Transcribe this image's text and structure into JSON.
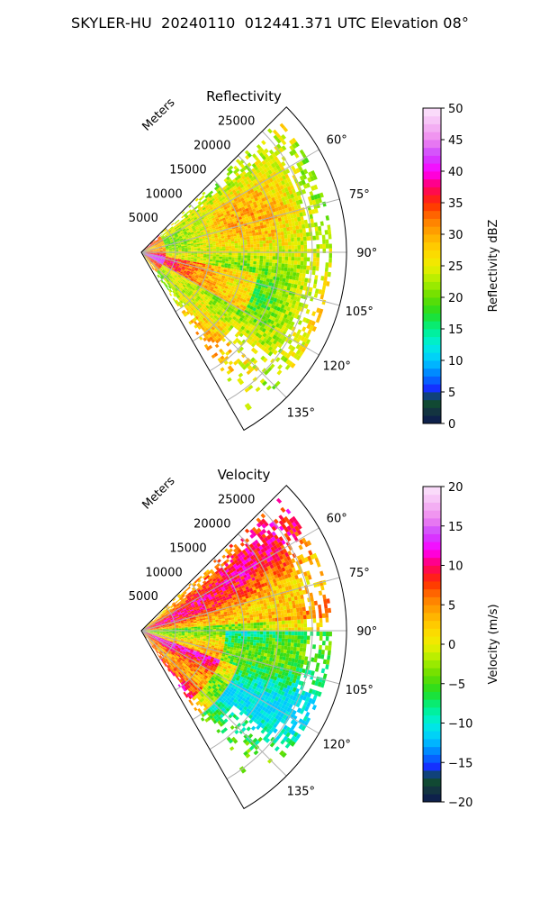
{
  "figure_title": "SKYLER-HU  20240110  012441.371 UTC Elevation 08°",
  "chart_data": [
    {
      "type": "heatmap",
      "projection": "polar-sector",
      "title": "Reflectivity",
      "radial_label": "Meters",
      "radial_ticks": [
        "5000",
        "10000",
        "15000",
        "20000",
        "25000"
      ],
      "radial_tick_values": [
        5000,
        10000,
        15000,
        20000,
        25000
      ],
      "r_max": 30000,
      "azimuth_range": [
        45,
        150
      ],
      "azimuth_ticks": [
        "60°",
        "75°",
        "90°",
        "105°",
        "120°",
        "135°"
      ],
      "azimuth_tick_values": [
        60,
        75,
        90,
        105,
        120,
        135
      ],
      "grid": true,
      "colorbar": {
        "label": "Reflectivity dBZ",
        "range": [
          0,
          50
        ],
        "ticks": [
          "0",
          "5",
          "10",
          "15",
          "20",
          "25",
          "30",
          "35",
          "40",
          "45",
          "50"
        ],
        "tick_values": [
          0,
          5,
          10,
          15,
          20,
          25,
          30,
          35,
          40,
          45,
          50
        ],
        "stops": [
          {
            "v": 0,
            "c": "#0b1750"
          },
          {
            "v": 2.5,
            "c": "#163d3a"
          },
          {
            "v": 4,
            "c": "#0a5a2a"
          },
          {
            "v": 5,
            "c": "#1a1aff"
          },
          {
            "v": 7.5,
            "c": "#0077ff"
          },
          {
            "v": 10,
            "c": "#00c8ff"
          },
          {
            "v": 12.5,
            "c": "#00eedd"
          },
          {
            "v": 15,
            "c": "#00f08a"
          },
          {
            "v": 17.5,
            "c": "#22dd22"
          },
          {
            "v": 20,
            "c": "#66dd00"
          },
          {
            "v": 22.5,
            "c": "#aaee00"
          },
          {
            "v": 25,
            "c": "#eeee00"
          },
          {
            "v": 27.5,
            "c": "#ffd400"
          },
          {
            "v": 30,
            "c": "#ffaa00"
          },
          {
            "v": 32.5,
            "c": "#ff7700"
          },
          {
            "v": 35,
            "c": "#ff2a00"
          },
          {
            "v": 37.5,
            "c": "#ff0066"
          },
          {
            "v": 40,
            "c": "#ff00ff"
          },
          {
            "v": 42.5,
            "c": "#cc44ff"
          },
          {
            "v": 45,
            "c": "#ee88ee"
          },
          {
            "v": 47.5,
            "c": "#f5bbf5"
          },
          {
            "v": 50,
            "c": "#fbe6fb"
          }
        ]
      },
      "colors": {
        "data_range": [
          16,
          42
        ],
        "noise": 3.5
      }
    },
    {
      "type": "heatmap",
      "projection": "polar-sector",
      "title": "Velocity",
      "radial_label": "Meters",
      "radial_ticks": [
        "5000",
        "10000",
        "15000",
        "20000",
        "25000"
      ],
      "radial_tick_values": [
        5000,
        10000,
        15000,
        20000,
        25000
      ],
      "r_max": 30000,
      "azimuth_range": [
        45,
        150
      ],
      "azimuth_ticks": [
        "60°",
        "75°",
        "90°",
        "105°",
        "120°",
        "135°"
      ],
      "azimuth_tick_values": [
        60,
        75,
        90,
        105,
        120,
        135
      ],
      "grid": true,
      "colorbar": {
        "label": "Velocity (m/s)",
        "range": [
          -20,
          20
        ],
        "ticks": [
          "−20",
          "−15",
          "−10",
          "−5",
          "0",
          "5",
          "10",
          "15",
          "20"
        ],
        "tick_values": [
          -20,
          -15,
          -10,
          -5,
          0,
          5,
          10,
          15,
          20
        ],
        "stops": [
          {
            "v": -20,
            "c": "#0b1750"
          },
          {
            "v": -18,
            "c": "#163d3a"
          },
          {
            "v": -16.8,
            "c": "#0a5a2a"
          },
          {
            "v": -16,
            "c": "#1a1aff"
          },
          {
            "v": -14,
            "c": "#0077ff"
          },
          {
            "v": -12,
            "c": "#00c8ff"
          },
          {
            "v": -10,
            "c": "#00eedd"
          },
          {
            "v": -8,
            "c": "#00f08a"
          },
          {
            "v": -6,
            "c": "#22dd22"
          },
          {
            "v": -4,
            "c": "#66dd00"
          },
          {
            "v": -2,
            "c": "#aaee00"
          },
          {
            "v": 0,
            "c": "#eeee00"
          },
          {
            "v": 2,
            "c": "#ffd400"
          },
          {
            "v": 4,
            "c": "#ffaa00"
          },
          {
            "v": 6,
            "c": "#ff7700"
          },
          {
            "v": 8,
            "c": "#ff2a00"
          },
          {
            "v": 10,
            "c": "#ff0066"
          },
          {
            "v": 12,
            "c": "#ff00ff"
          },
          {
            "v": 14,
            "c": "#cc44ff"
          },
          {
            "v": 16,
            "c": "#ee88ee"
          },
          {
            "v": 18,
            "c": "#f5bbf5"
          },
          {
            "v": 20,
            "c": "#fbe6fb"
          }
        ]
      },
      "colors": {
        "data_range": [
          -12,
          16
        ],
        "noise": 3
      }
    }
  ]
}
